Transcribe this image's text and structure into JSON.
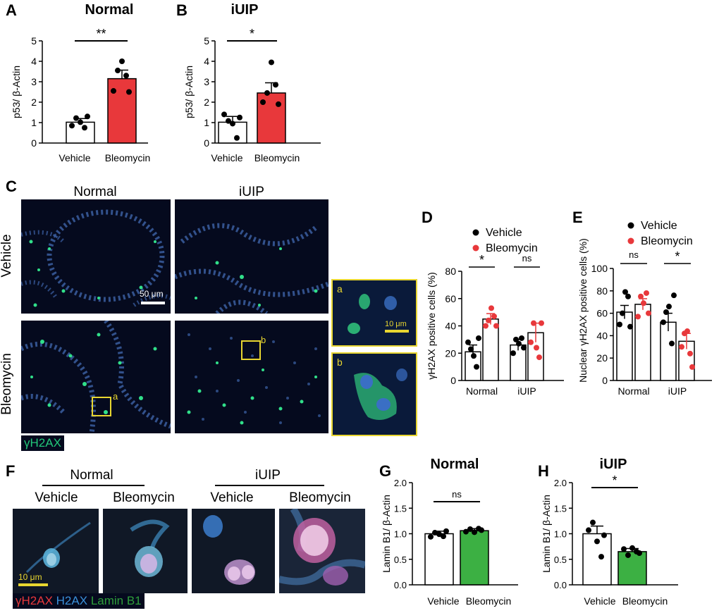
{
  "panel_letters": {
    "a": "A",
    "b": "B",
    "c": "C",
    "d": "D",
    "e": "E",
    "f": "F",
    "g": "G",
    "h": "H"
  },
  "colors": {
    "vehicle_bar": "#ffffff",
    "bleomycin_red": "#e8383b",
    "bleomycin_green": "#3cb043",
    "yh2ax": "#22c77a",
    "h2ax": "#3a8fd9",
    "laminb1": "#2e9e3a",
    "inset_border": "#e8d630"
  },
  "micrographs": {
    "col_normal": "Normal",
    "col_iuip": "iUIP",
    "row_vehicle": "Vehicle",
    "row_bleomycin": "Bleomycin",
    "scale_50": "50 μm",
    "scale_10": "10 μm",
    "inset_a": "a",
    "inset_b": "b",
    "legend": "γH2AX"
  },
  "panelF": {
    "group_normal": "Normal",
    "group_iuip": "iUIP",
    "col_labels": [
      "Vehicle",
      "Bleomycin",
      "Vehicle",
      "Bleomycin"
    ],
    "scale": "10 μm",
    "stain_yh2ax": "γH2AX",
    "stain_h2ax": "H2AX",
    "stain_laminb1": "Lamin B1"
  },
  "chart_data": [
    {
      "id": "A",
      "type": "bar",
      "title": "Normal",
      "ylabel": "p53/ β-Actin",
      "ylim": [
        0,
        5
      ],
      "yticks": [
        0,
        1,
        2,
        3,
        4,
        5
      ],
      "categories": [
        "Vehicle",
        "Bleomycin"
      ],
      "values": [
        1.02,
        3.15
      ],
      "errors": [
        0.18,
        0.42
      ],
      "points": [
        [
          0.85,
          1.22,
          1.02,
          0.75,
          1.3
        ],
        [
          2.55,
          3.55,
          4.0,
          3.3,
          2.5
        ]
      ],
      "significance": "**"
    },
    {
      "id": "B",
      "type": "bar",
      "title": "iUIP",
      "ylabel": "p53/ β-Actin",
      "ylim": [
        0,
        5
      ],
      "yticks": [
        0,
        1,
        2,
        3,
        4,
        5
      ],
      "categories": [
        "Vehicle",
        "Bleomycin"
      ],
      "values": [
        1.02,
        2.45
      ],
      "errors": [
        0.28,
        0.5
      ],
      "points": [
        [
          1.4,
          1.08,
          0.95,
          0.25,
          1.25
        ],
        [
          2.0,
          2.45,
          3.95,
          2.85,
          1.9
        ]
      ],
      "significance": "*"
    },
    {
      "id": "D",
      "type": "bar",
      "ylabel": "γH2AX positive cells (%)",
      "ylim": [
        0,
        80
      ],
      "yticks": [
        0,
        20,
        40,
        60,
        80
      ],
      "categories": [
        "Normal",
        "iUIP"
      ],
      "series": [
        {
          "name": "Vehicle",
          "values": [
            21,
            26
          ],
          "errors": [
            5,
            4
          ],
          "points": [
            [
              28,
              23,
              18,
              10,
              31
            ],
            [
              20,
              30,
              27,
              31,
              24
            ]
          ]
        },
        {
          "name": "Bleomycin",
          "values": [
            45,
            35
          ],
          "errors": [
            4,
            7
          ],
          "points": [
            [
              40,
              44,
              53,
              47,
              40
            ],
            [
              28,
              42,
              24,
              17,
              42
            ]
          ]
        }
      ],
      "significance": [
        "*",
        "ns"
      ]
    },
    {
      "id": "E",
      "type": "bar",
      "ylabel": "Nuclear γH2AX positive cells (%)",
      "ylim": [
        0,
        100
      ],
      "yticks": [
        0,
        20,
        40,
        60,
        80,
        100
      ],
      "categories": [
        "Normal",
        "iUIP"
      ],
      "series": [
        {
          "name": "Vehicle",
          "values": [
            61,
            52
          ],
          "errors": [
            6,
            8
          ],
          "points": [
            [
              50,
              60,
              79,
              75,
              48
            ],
            [
              52,
              61,
              66,
              33,
              76
            ]
          ]
        },
        {
          "name": "Bleomycin",
          "values": [
            68,
            35
          ],
          "errors": [
            5,
            7
          ],
          "points": [
            [
              57,
              75,
              69,
              78,
              60
            ],
            [
              30,
              42,
              44,
              24,
              12
            ]
          ]
        }
      ],
      "significance": [
        "ns",
        "*"
      ]
    },
    {
      "id": "G",
      "type": "bar",
      "title": "Normal",
      "ylabel": "Lamin B1/ β-Actin",
      "ylim": [
        0,
        2.0
      ],
      "yticks": [
        "0.0",
        "0.5",
        "1.0",
        "1.5",
        "2.0"
      ],
      "categories": [
        "Vehicle",
        "Bleomycin"
      ],
      "values": [
        1.0,
        1.06
      ],
      "errors": [
        0.05,
        0.04
      ],
      "points": [
        [
          0.94,
          1.02,
          0.99,
          0.95,
          1.05
        ],
        [
          1.04,
          1.09,
          1.03,
          1.1,
          1.07
        ]
      ],
      "significance": "ns"
    },
    {
      "id": "H",
      "type": "bar",
      "title": "iUIP",
      "ylabel": "Lamin B1/ β-Actin",
      "ylim": [
        0,
        2.0
      ],
      "yticks": [
        "0.0",
        "0.5",
        "1.0",
        "1.5",
        "2.0"
      ],
      "categories": [
        "Vehicle",
        "Bleomycin"
      ],
      "values": [
        1.0,
        0.65
      ],
      "errors": [
        0.15,
        0.06
      ],
      "points": [
        [
          1.07,
          1.22,
          0.85,
          0.55,
          0.97
        ],
        [
          0.7,
          0.58,
          0.72,
          0.65,
          0.62
        ]
      ],
      "significance": "*"
    }
  ]
}
